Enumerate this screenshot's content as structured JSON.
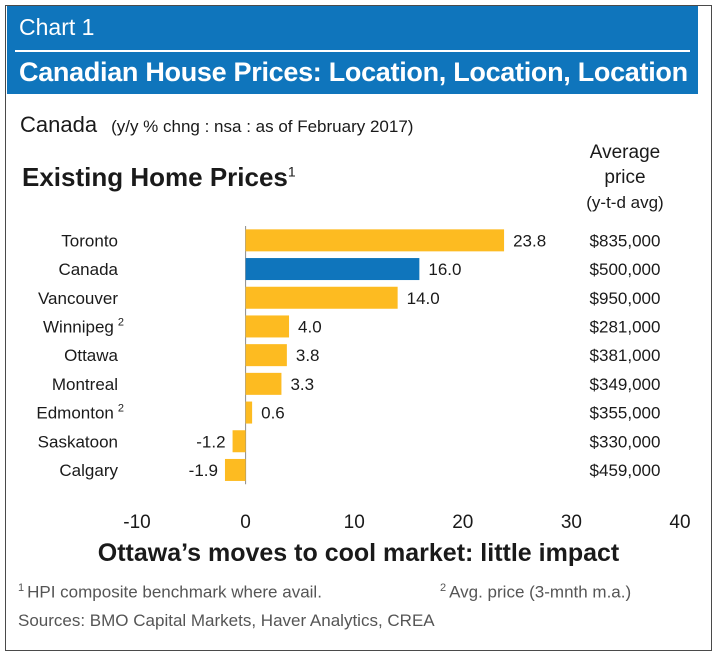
{
  "header": {
    "chart_number": "Chart 1",
    "title": "Canadian House Prices: Location, Location, Location"
  },
  "subtitle": {
    "region": "Canada",
    "note": "(y/y % chng : nsa : as of February 2017)"
  },
  "section": {
    "title": "Existing Home Prices",
    "footnote_mark": "1"
  },
  "avg_price_header": {
    "line1": "Average",
    "line2": "price",
    "line3": "(y-t-d avg)"
  },
  "footer": {
    "headline": "Ottawa’s moves to cool market: little impact",
    "footnote1_mark": "1",
    "footnote1": "HPI composite benchmark where avail.",
    "footnote2_mark": "2",
    "footnote2": "Avg. price (3-mnth m.a.)",
    "sources": "Sources: BMO Capital Markets, Haver Analytics, CREA"
  },
  "colors": {
    "banner": "#0f75bc",
    "bar_default": "#fdbb21",
    "bar_highlight": "#0f75bc"
  },
  "chart_data": {
    "type": "bar",
    "orientation": "horizontal",
    "categories": [
      "Toronto",
      "Canada",
      "Vancouver",
      "Winnipeg",
      "Ottawa",
      "Montreal",
      "Edmonton",
      "Saskatoon",
      "Calgary"
    ],
    "category_superscripts": [
      "",
      "",
      "",
      "2",
      "",
      "",
      "2",
      "",
      ""
    ],
    "values": [
      23.8,
      16.0,
      14.0,
      4.0,
      3.8,
      3.3,
      0.6,
      -1.2,
      -1.9
    ],
    "value_labels": [
      "23.8",
      "16.0",
      "14.0",
      "4.0",
      "3.8",
      "3.3",
      "0.6",
      "-1.2",
      "-1.9"
    ],
    "highlight": [
      "Canada"
    ],
    "average_price": [
      "$835,000",
      "$500,000",
      "$950,000",
      "$281,000",
      "$381,000",
      "$349,000",
      "$355,000",
      "$330,000",
      "$459,000"
    ],
    "xlim": [
      -10,
      40
    ],
    "xticks": [
      -10,
      0,
      10,
      20,
      30,
      40
    ],
    "xtick_labels": [
      "-10",
      "0",
      "10",
      "20",
      "30",
      "40"
    ],
    "title": "Existing Home Prices",
    "xlabel": "",
    "ylabel": "",
    "grid": false,
    "legend": "none"
  }
}
